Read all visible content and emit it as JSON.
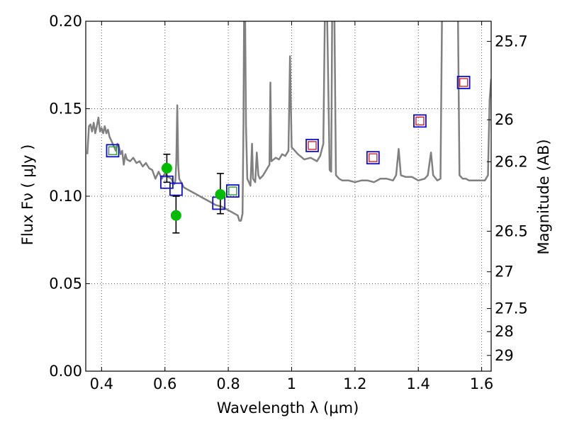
{
  "chart_data": {
    "type": "scatter",
    "xlabel": "Wavelength  λ (μm)",
    "ylabel": "Flux  Fν  ( μJy )",
    "ylabel_right": "Magnitude (AB)",
    "xlim": [
      0.35,
      1.63
    ],
    "ylim": [
      0.0,
      0.2
    ],
    "grid": true,
    "x_ticks": [
      0.4,
      0.6,
      0.8,
      1.0,
      1.2,
      1.4,
      1.6
    ],
    "x_tick_labels": [
      "0.4",
      "0.6",
      "0.8",
      "1",
      "1.2",
      "1.4",
      "1.6"
    ],
    "y_ticks": [
      0.0,
      0.05,
      0.1,
      0.15,
      0.2
    ],
    "y_tick_labels": [
      "0.00",
      "0.05",
      "0.10",
      "0.15",
      "0.20"
    ],
    "right_ticks": [
      {
        "flux": 0.1885,
        "label": "25.7"
      },
      {
        "flux": 0.1437,
        "label": "26"
      },
      {
        "flux": 0.1197,
        "label": "26.2"
      },
      {
        "flux": 0.08,
        "label": "26.5"
      },
      {
        "flux": 0.0568,
        "label": "27"
      },
      {
        "flux": 0.0358,
        "label": "27.5"
      },
      {
        "flux": 0.0226,
        "label": "28"
      },
      {
        "flux": 0.009,
        "label": "29"
      }
    ],
    "colors": {
      "model": "#808080",
      "square_blue": "#1010cc",
      "square_green": "#2e9e2e",
      "square_red": "#dd2222",
      "obs": "#00bb00",
      "errorbar": "#000000",
      "grid": "#555555"
    },
    "series": [
      {
        "kind": "model-spectrum",
        "points": [
          [
            0.355,
            0.124
          ],
          [
            0.36,
            0.14
          ],
          [
            0.365,
            0.141
          ],
          [
            0.37,
            0.137
          ],
          [
            0.375,
            0.142
          ],
          [
            0.38,
            0.136
          ],
          [
            0.385,
            0.14
          ],
          [
            0.39,
            0.145
          ],
          [
            0.395,
            0.137
          ],
          [
            0.4,
            0.139
          ],
          [
            0.405,
            0.136
          ],
          [
            0.41,
            0.14
          ],
          [
            0.415,
            0.136
          ],
          [
            0.42,
            0.138
          ],
          [
            0.425,
            0.134
          ],
          [
            0.43,
            0.132
          ],
          [
            0.435,
            0.13
          ],
          [
            0.44,
            0.128
          ],
          [
            0.445,
            0.126
          ],
          [
            0.45,
            0.13
          ],
          [
            0.455,
            0.128
          ],
          [
            0.46,
            0.124
          ],
          [
            0.465,
            0.126
          ],
          [
            0.47,
            0.118
          ],
          [
            0.475,
            0.124
          ],
          [
            0.48,
            0.121
          ],
          [
            0.49,
            0.12
          ],
          [
            0.5,
            0.122
          ],
          [
            0.51,
            0.119
          ],
          [
            0.52,
            0.12
          ],
          [
            0.53,
            0.117
          ],
          [
            0.54,
            0.119
          ],
          [
            0.55,
            0.116
          ],
          [
            0.56,
            0.115
          ],
          [
            0.57,
            0.11
          ],
          [
            0.58,
            0.114
          ],
          [
            0.59,
            0.11
          ],
          [
            0.6,
            0.113
          ],
          [
            0.61,
            0.111
          ],
          [
            0.62,
            0.11
          ],
          [
            0.625,
            0.108
          ],
          [
            0.63,
            0.107
          ],
          [
            0.633,
            0.109
          ],
          [
            0.636,
            0.12
          ],
          [
            0.639,
            0.152
          ],
          [
            0.642,
            0.118
          ],
          [
            0.645,
            0.11
          ],
          [
            0.66,
            0.105
          ],
          [
            0.68,
            0.103
          ],
          [
            0.7,
            0.101
          ],
          [
            0.72,
            0.099
          ],
          [
            0.74,
            0.097
          ],
          [
            0.76,
            0.095
          ],
          [
            0.78,
            0.094
          ],
          [
            0.79,
            0.093
          ],
          [
            0.8,
            0.092
          ],
          [
            0.81,
            0.091
          ],
          [
            0.82,
            0.09
          ],
          [
            0.83,
            0.089
          ],
          [
            0.835,
            0.086
          ],
          [
            0.84,
            0.086
          ],
          [
            0.845,
            0.09
          ],
          [
            0.848,
            0.14
          ],
          [
            0.85,
            0.205
          ],
          [
            0.853,
            0.205
          ],
          [
            0.856,
            0.14
          ],
          [
            0.86,
            0.11
          ],
          [
            0.87,
            0.106
          ],
          [
            0.875,
            0.13
          ],
          [
            0.878,
            0.11
          ],
          [
            0.885,
            0.108
          ],
          [
            0.89,
            0.125
          ],
          [
            0.895,
            0.112
          ],
          [
            0.9,
            0.11
          ],
          [
            0.91,
            0.112
          ],
          [
            0.92,
            0.115
          ],
          [
            0.93,
            0.118
          ],
          [
            0.933,
            0.165
          ],
          [
            0.936,
            0.12
          ],
          [
            0.95,
            0.122
          ],
          [
            0.96,
            0.121
          ],
          [
            0.97,
            0.124
          ],
          [
            0.98,
            0.123
          ],
          [
            0.99,
            0.126
          ],
          [
            0.995,
            0.18
          ],
          [
            1.0,
            0.128
          ],
          [
            1.02,
            0.124
          ],
          [
            1.04,
            0.121
          ],
          [
            1.06,
            0.122
          ],
          [
            1.08,
            0.12
          ],
          [
            1.09,
            0.123
          ],
          [
            1.1,
            0.13
          ],
          [
            1.105,
            0.205
          ],
          [
            1.112,
            0.205
          ],
          [
            1.12,
            0.115
          ],
          [
            1.125,
            0.114
          ],
          [
            1.128,
            0.205
          ],
          [
            1.135,
            0.205
          ],
          [
            1.14,
            0.112
          ],
          [
            1.15,
            0.11
          ],
          [
            1.16,
            0.109
          ],
          [
            1.17,
            0.109
          ],
          [
            1.18,
            0.109
          ],
          [
            1.2,
            0.108
          ],
          [
            1.22,
            0.109
          ],
          [
            1.24,
            0.109
          ],
          [
            1.26,
            0.108
          ],
          [
            1.28,
            0.11
          ],
          [
            1.3,
            0.11
          ],
          [
            1.32,
            0.109
          ],
          [
            1.33,
            0.112
          ],
          [
            1.338,
            0.127
          ],
          [
            1.345,
            0.112
          ],
          [
            1.36,
            0.111
          ],
          [
            1.38,
            0.111
          ],
          [
            1.4,
            0.109
          ],
          [
            1.42,
            0.11
          ],
          [
            1.43,
            0.112
          ],
          [
            1.44,
            0.125
          ],
          [
            1.447,
            0.112
          ],
          [
            1.46,
            0.109
          ],
          [
            1.47,
            0.11
          ],
          [
            1.475,
            0.205
          ],
          [
            1.48,
            0.205
          ],
          [
            1.49,
            0.205
          ],
          [
            1.5,
            0.205
          ],
          [
            1.51,
            0.205
          ],
          [
            1.52,
            0.205
          ],
          [
            1.525,
            0.205
          ],
          [
            1.53,
            0.112
          ],
          [
            1.54,
            0.11
          ],
          [
            1.55,
            0.11
          ],
          [
            1.56,
            0.109
          ],
          [
            1.58,
            0.109
          ],
          [
            1.6,
            0.109
          ],
          [
            1.61,
            0.109
          ],
          [
            1.62,
            0.112
          ],
          [
            1.625,
            0.155
          ],
          [
            1.63,
            0.167
          ]
        ]
      },
      {
        "kind": "synthetic-photometry-squares",
        "points": [
          {
            "x": 0.435,
            "y": 0.126,
            "outer": "blue",
            "inner": "green"
          },
          {
            "x": 0.606,
            "y": 0.108,
            "outer": "blue",
            "inner": ""
          },
          {
            "x": 0.635,
            "y": 0.104,
            "outer": "blue",
            "inner": ""
          },
          {
            "x": 0.77,
            "y": 0.096,
            "outer": "blue",
            "inner": ""
          },
          {
            "x": 0.814,
            "y": 0.103,
            "outer": "blue",
            "inner": "green"
          },
          {
            "x": 1.065,
            "y": 0.129,
            "outer": "blue",
            "inner": "red"
          },
          {
            "x": 1.257,
            "y": 0.122,
            "outer": "blue",
            "inner": "red"
          },
          {
            "x": 1.405,
            "y": 0.143,
            "outer": "blue",
            "inner": "red"
          },
          {
            "x": 1.543,
            "y": 0.165,
            "outer": "blue",
            "inner": "red"
          }
        ]
      },
      {
        "kind": "observed-photometry",
        "points": [
          {
            "x": 0.606,
            "y": 0.116,
            "err_lo": 0.108,
            "err_hi": 0.124
          },
          {
            "x": 0.635,
            "y": 0.089,
            "err_lo": 0.079,
            "err_hi": 0.1
          },
          {
            "x": 0.775,
            "y": 0.101,
            "err_lo": 0.09,
            "err_hi": 0.113
          }
        ]
      }
    ]
  }
}
